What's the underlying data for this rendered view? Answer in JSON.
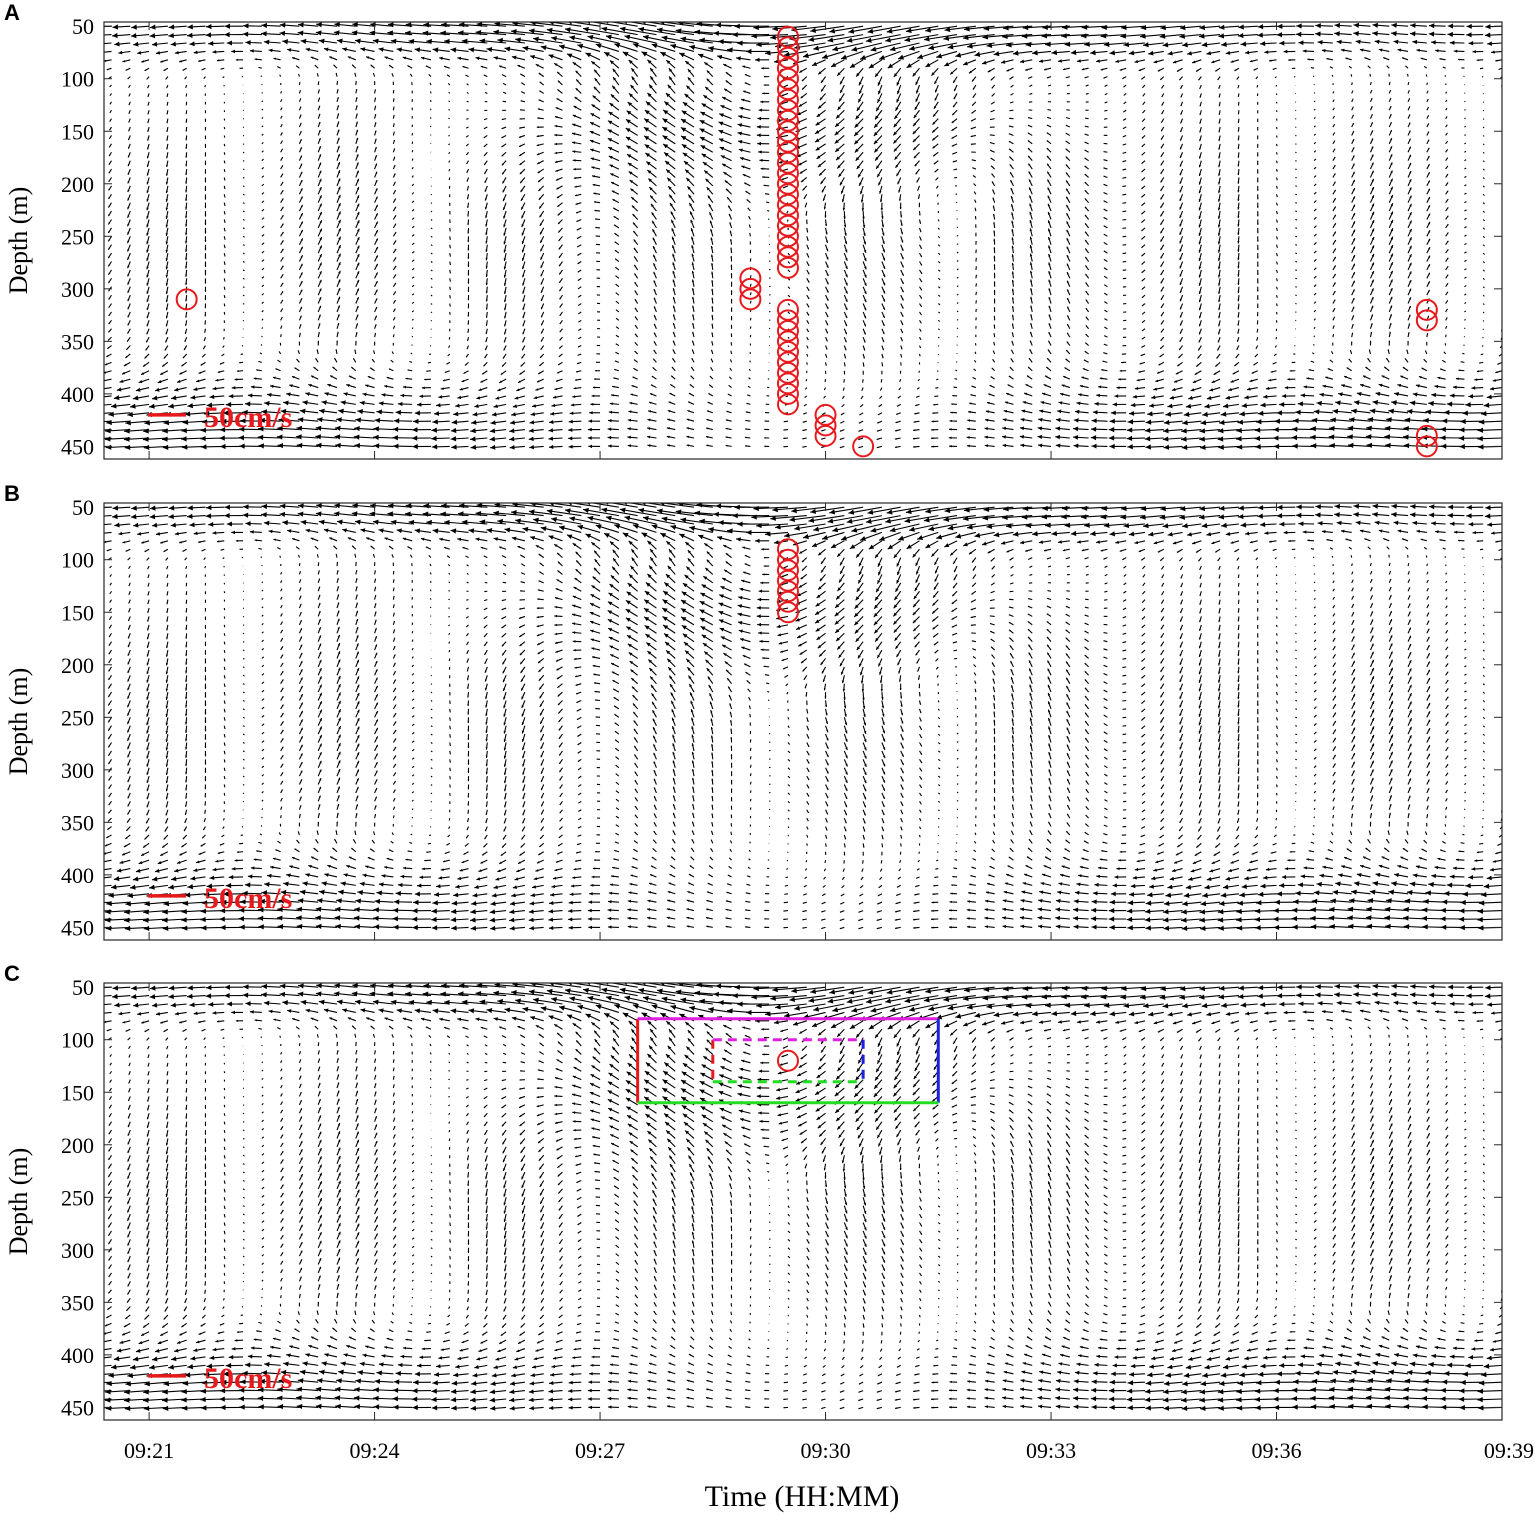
{
  "chart_data": {
    "type": "scatter",
    "x_axis": {
      "label": "Time (HH:MM)",
      "range_min": [
        9,
        20.4
      ],
      "ticks": [
        "09:21",
        "09:24",
        "09:27",
        "09:30",
        "09:33",
        "09:36",
        "09:39"
      ],
      "tick_minutes": [
        21,
        24,
        27,
        30,
        33,
        36,
        39
      ]
    },
    "y_axis": {
      "label": "Depth (m)",
      "range": [
        46,
        462
      ],
      "ticks": [
        50,
        100,
        150,
        200,
        250,
        300,
        350,
        400,
        450
      ],
      "inverted": true
    },
    "vector_scale_label": "50cm/s",
    "colors": {
      "vectors": "#000000",
      "markers": "#e8191c",
      "box_left": "#e8191c",
      "box_top": "#e020e0",
      "box_right": "#1f1fe0",
      "box_bottom": "#22dd22"
    },
    "panels": [
      {
        "letter": "A",
        "markers": [
          {
            "time": "09:21.5",
            "minute": 21.5,
            "depths": [
              310
            ]
          },
          {
            "time": "09:29",
            "minute": 29.0,
            "depths": [
              290,
              300,
              310
            ]
          },
          {
            "time": "09:29.5",
            "minute": 29.5,
            "depths": [
              60,
              70,
              80,
              90,
              100,
              110,
              120,
              130,
              140,
              150,
              160,
              170,
              180,
              190,
              200,
              210,
              220,
              230,
              240,
              250,
              260,
              270,
              280,
              320,
              330,
              340,
              350,
              360,
              370,
              380,
              390,
              400,
              410
            ]
          },
          {
            "time": "09:30",
            "minute": 30.0,
            "depths": [
              420,
              430,
              440
            ]
          },
          {
            "time": "09:30.5",
            "minute": 30.5,
            "depths": [
              450
            ]
          },
          {
            "time": "09:38",
            "minute": 38.0,
            "depths": [
              320,
              330,
              440,
              450
            ]
          }
        ],
        "boxes": []
      },
      {
        "letter": "B",
        "markers": [
          {
            "time": "09:29.5",
            "minute": 29.5,
            "depths": [
              90,
              100,
              110,
              120,
              130,
              140,
              150
            ]
          }
        ],
        "boxes": []
      },
      {
        "letter": "C",
        "markers": [
          {
            "time": "09:29.5",
            "minute": 29.5,
            "depths": [
              120
            ]
          }
        ],
        "boxes": [
          {
            "style": "solid",
            "t0": 27.5,
            "t1": 31.5,
            "d0": 80,
            "d1": 160
          },
          {
            "style": "dashed",
            "t0": 28.5,
            "t1": 30.5,
            "d0": 100,
            "d1": 140
          }
        ]
      }
    ],
    "flow_field": {
      "description_units": "cm/s",
      "eddy_center_minute": 29.2,
      "eddy_center_depth": 95,
      "surface_jet_direction": "westward",
      "deep_flow_direction": "westward"
    }
  }
}
